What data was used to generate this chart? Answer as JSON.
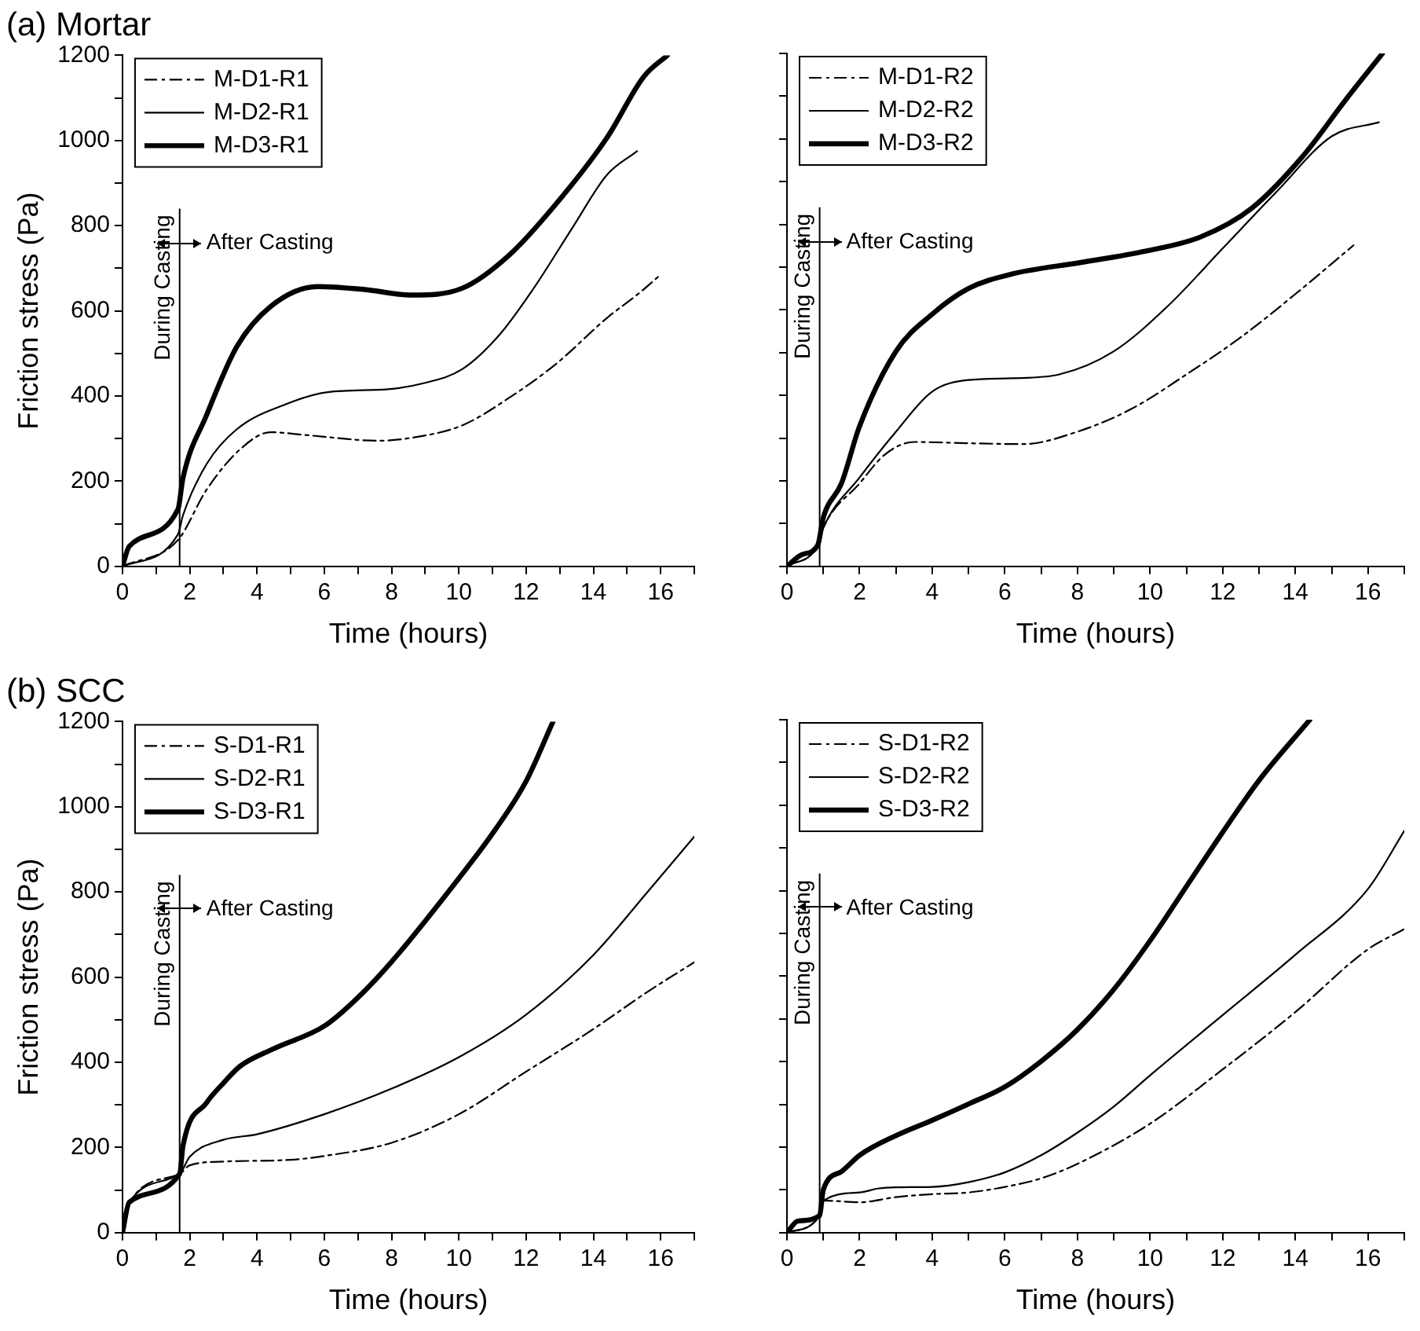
{
  "chart_data": [
    {
      "type": "line",
      "title": "(a) Mortar",
      "xlabel": "Time (hours)",
      "ylabel": "Friction stress (Pa)",
      "xlim": [
        0,
        17
      ],
      "ylim": [
        0,
        1200
      ],
      "xticks": [
        0,
        {
          "value": 1,
          "label": null
        },
        2,
        {
          "value": 3,
          "label": null
        },
        4,
        {
          "value": 5,
          "label": null
        },
        6,
        {
          "value": 7,
          "label": null
        },
        8,
        {
          "value": 9,
          "label": null
        },
        10,
        {
          "value": 11,
          "label": null
        },
        12,
        {
          "value": 13,
          "label": null
        },
        14,
        {
          "value": 15,
          "label": null
        },
        16,
        {
          "value": 17,
          "label": null
        }
      ],
      "yticks": [
        0,
        {
          "value": 100,
          "label": null
        },
        200,
        {
          "value": 300,
          "label": null
        },
        400,
        {
          "value": 500,
          "label": null
        },
        600,
        {
          "value": 700,
          "label": null
        },
        800,
        {
          "value": 900,
          "label": null
        },
        1000,
        {
          "value": 1100,
          "label": null
        },
        1200
      ],
      "grid": false,
      "legend": "top left",
      "ref_lines": [
        {
          "axis": "x",
          "value": 1.7
        }
      ],
      "annotations": [
        "During Casting",
        "After Casting"
      ],
      "series": [
        {
          "name": "M-D1-R1",
          "color": "#000000",
          "line_style": "dashdot",
          "x": [
            0,
            1.65,
            2.5,
            3.5,
            4.4,
            5.5,
            7.6,
            8.6,
            10.1,
            11.5,
            12.9,
            14.4,
            15.4,
            16
          ],
          "values": [
            0,
            62,
            180,
            275,
            315,
            308,
            295,
            302,
            331,
            396,
            476,
            583,
            644,
            685
          ]
        },
        {
          "name": "M-D2-R1",
          "color": "#000000",
          "line_style": "solid",
          "x": [
            0,
            1.65,
            1.8,
            2.5,
            3.4,
            4.9,
            6.1,
            7.9,
            8.9,
            10.1,
            11.2,
            12.2,
            13.4,
            14.4,
            15.3
          ],
          "values": [
            0,
            75,
            120,
            240,
            322,
            382,
            409,
            416,
            429,
            463,
            543,
            650,
            798,
            919,
            975
          ]
        },
        {
          "name": "M-D3-R1",
          "color": "#000000",
          "line_style": "solid",
          "x": [
            0,
            0.2,
            1.65,
            1.8,
            2.5,
            3.4,
            4.4,
            5.8,
            7.2,
            8.6,
            10.1,
            11.5,
            12.9,
            14.4,
            15.5,
            16.2
          ],
          "values": [
            0,
            47,
            134,
            208,
            355,
            516,
            610,
            657,
            650,
            637,
            653,
            731,
            852,
            1006,
            1150,
            1200
          ]
        }
      ]
    },
    {
      "type": "line",
      "xlabel": "Time (hours)",
      "xlim": [
        0,
        17
      ],
      "ylim": [
        0,
        1200
      ],
      "tick_labels": "x",
      "xticks": [
        0,
        {
          "value": 1,
          "label": null
        },
        2,
        {
          "value": 3,
          "label": null
        },
        4,
        {
          "value": 5,
          "label": null
        },
        6,
        {
          "value": 7,
          "label": null
        },
        8,
        {
          "value": 9,
          "label": null
        },
        10,
        {
          "value": 11,
          "label": null
        },
        12,
        {
          "value": 13,
          "label": null
        },
        14,
        {
          "value": 15,
          "label": null
        },
        16,
        {
          "value": 17,
          "label": null
        }
      ],
      "yticks": [
        0,
        {
          "value": 100,
          "label": null
        },
        200,
        {
          "value": 300,
          "label": null
        },
        400,
        {
          "value": 500,
          "label": null
        },
        600,
        {
          "value": 700,
          "label": null
        },
        800,
        {
          "value": 900,
          "label": null
        },
        1000,
        {
          "value": 1100,
          "label": null
        },
        1200
      ],
      "grid": false,
      "legend": "top left",
      "ref_lines": [
        {
          "axis": "x",
          "value": 0.9
        }
      ],
      "annotations": [
        "During Casting",
        "After Casting"
      ],
      "series": [
        {
          "name": "M-D1-R2",
          "color": "#000000",
          "line_style": "dashdot",
          "x": [
            0,
            0.85,
            1,
            2,
            2.7,
            3.5,
            5,
            6.5,
            8,
            9.5,
            11,
            12.5,
            14,
            15.6
          ],
          "values": [
            0,
            50,
            90,
            194,
            262,
            291,
            288,
            286,
            315,
            369,
            449,
            536,
            637,
            751
          ]
        },
        {
          "name": "M-D2-R2",
          "color": "#000000",
          "line_style": "solid",
          "x": [
            0,
            0.85,
            1,
            2,
            3,
            4,
            5,
            6.2,
            7.5,
            9,
            10.5,
            12,
            13.5,
            15,
            16.3
          ],
          "values": [
            0,
            50,
            90,
            208,
            315,
            409,
            436,
            440,
            449,
            503,
            610,
            744,
            878,
            1006,
            1039
          ]
        },
        {
          "name": "M-D3-R2",
          "color": "#000000",
          "line_style": "solid",
          "x": [
            0,
            0.4,
            0.85,
            1,
            1.5,
            2,
            3,
            4,
            5,
            6.2,
            8.1,
            9.9,
            11.4,
            12.8,
            14.2,
            15.4,
            16.4
          ],
          "values": [
            0,
            27,
            50,
            114,
            194,
            328,
            503,
            590,
            650,
            684,
            711,
            738,
            771,
            838,
            959,
            1093,
            1200
          ]
        }
      ]
    },
    {
      "type": "line",
      "title": "(b) SCC",
      "xlabel": "Time (hours)",
      "ylabel": "Friction stress (Pa)",
      "xlim": [
        0,
        17
      ],
      "ylim": [
        0,
        1200
      ],
      "xticks": [
        0,
        {
          "value": 1,
          "label": null
        },
        2,
        {
          "value": 3,
          "label": null
        },
        4,
        {
          "value": 5,
          "label": null
        },
        6,
        {
          "value": 7,
          "label": null
        },
        8,
        {
          "value": 9,
          "label": null
        },
        10,
        {
          "value": 11,
          "label": null
        },
        12,
        {
          "value": 13,
          "label": null
        },
        14,
        {
          "value": 15,
          "label": null
        },
        16,
        {
          "value": 17,
          "label": null
        }
      ],
      "yticks": [
        0,
        {
          "value": 100,
          "label": null
        },
        200,
        {
          "value": 300,
          "label": null
        },
        400,
        {
          "value": 500,
          "label": null
        },
        600,
        {
          "value": 700,
          "label": null
        },
        800,
        {
          "value": 900,
          "label": null
        },
        1000,
        {
          "value": 1100,
          "label": null
        },
        1200
      ],
      "grid": false,
      "legend": "top left",
      "ref_lines": [
        {
          "axis": "x",
          "value": 1.7
        }
      ],
      "annotations": [
        "During Casting",
        "After Casting"
      ],
      "series": [
        {
          "name": "S-D1-R1",
          "color": "#000000",
          "line_style": "dashdot",
          "x": [
            0,
            0.2,
            1.7,
            2,
            3,
            5,
            6,
            8,
            10,
            12,
            14,
            15.6,
            17
          ],
          "values": [
            0,
            70,
            138,
            158,
            167,
            171,
            180,
            211,
            278,
            378,
            478,
            565,
            635
          ]
        },
        {
          "name": "S-D2-R1",
          "color": "#000000",
          "line_style": "solid",
          "x": [
            0,
            0.2,
            1.7,
            2,
            3,
            4,
            6,
            8,
            10,
            12,
            14,
            15.6,
            17
          ],
          "values": [
            0,
            70,
            138,
            178,
            218,
            231,
            278,
            338,
            412,
            512,
            652,
            799,
            930
          ]
        },
        {
          "name": "S-D3-R1",
          "color": "#000000",
          "line_style": "solid",
          "x": [
            0,
            0.2,
            1.7,
            1.8,
            2.5,
            3,
            3.5,
            4.5,
            6,
            7,
            8,
            10,
            11,
            12,
            12.8
          ],
          "values": [
            0,
            71,
            138,
            204,
            305,
            351,
            391,
            432,
            485,
            552,
            636,
            832,
            937,
            1060,
            1200
          ]
        }
      ]
    },
    {
      "type": "line",
      "xlabel": "Time (hours)",
      "xlim": [
        0,
        17
      ],
      "ylim": [
        0,
        1200
      ],
      "tick_labels": "x",
      "xticks": [
        0,
        {
          "value": 1,
          "label": null
        },
        2,
        {
          "value": 3,
          "label": null
        },
        4,
        {
          "value": 5,
          "label": null
        },
        6,
        {
          "value": 7,
          "label": null
        },
        8,
        {
          "value": 9,
          "label": null
        },
        10,
        {
          "value": 11,
          "label": null
        },
        12,
        {
          "value": 13,
          "label": null
        },
        14,
        {
          "value": 15,
          "label": null
        },
        16,
        {
          "value": 17,
          "label": null
        }
      ],
      "yticks": [
        0,
        {
          "value": 100,
          "label": null
        },
        200,
        {
          "value": 300,
          "label": null
        },
        400,
        {
          "value": 500,
          "label": null
        },
        600,
        {
          "value": 700,
          "label": null
        },
        800,
        {
          "value": 900,
          "label": null
        },
        1000,
        {
          "value": 1100,
          "label": null
        },
        1200
      ],
      "grid": false,
      "legend": "top left",
      "ref_lines": [
        {
          "axis": "x",
          "value": 0.9
        }
      ],
      "annotations": [
        "During Casting",
        "After Casting"
      ],
      "series": [
        {
          "name": "S-D1-R2",
          "color": "#000000",
          "line_style": "dashdot",
          "x": [
            0,
            0.9,
            1,
            2,
            3,
            4,
            5,
            6,
            7,
            8,
            10,
            12,
            14,
            16,
            17
          ],
          "values": [
            0,
            40,
            75,
            71,
            83,
            90,
            94,
            107,
            127,
            161,
            255,
            382,
            516,
            663,
            710
          ]
        },
        {
          "name": "S-D2-R2",
          "color": "#000000",
          "line_style": "solid",
          "x": [
            0,
            0.9,
            1,
            2,
            2.5,
            3,
            4,
            5,
            6,
            7,
            8,
            9,
            10,
            12,
            14,
            16,
            17
          ],
          "values": [
            0,
            40,
            74,
            94,
            103,
            106,
            107,
            118,
            141,
            181,
            234,
            295,
            368,
            509,
            650,
            804,
            940
          ]
        },
        {
          "name": "S-D3-R2",
          "color": "#000000",
          "line_style": "solid",
          "x": [
            0,
            0.3,
            0.9,
            1,
            1.5,
            2,
            3,
            4,
            5,
            6,
            7,
            8,
            9,
            10,
            11,
            12,
            13,
            14.4
          ],
          "values": [
            0,
            27,
            40,
            100,
            143,
            181,
            227,
            263,
            301,
            341,
            401,
            475,
            569,
            683,
            810,
            937,
            1058,
            1200
          ]
        }
      ]
    }
  ]
}
